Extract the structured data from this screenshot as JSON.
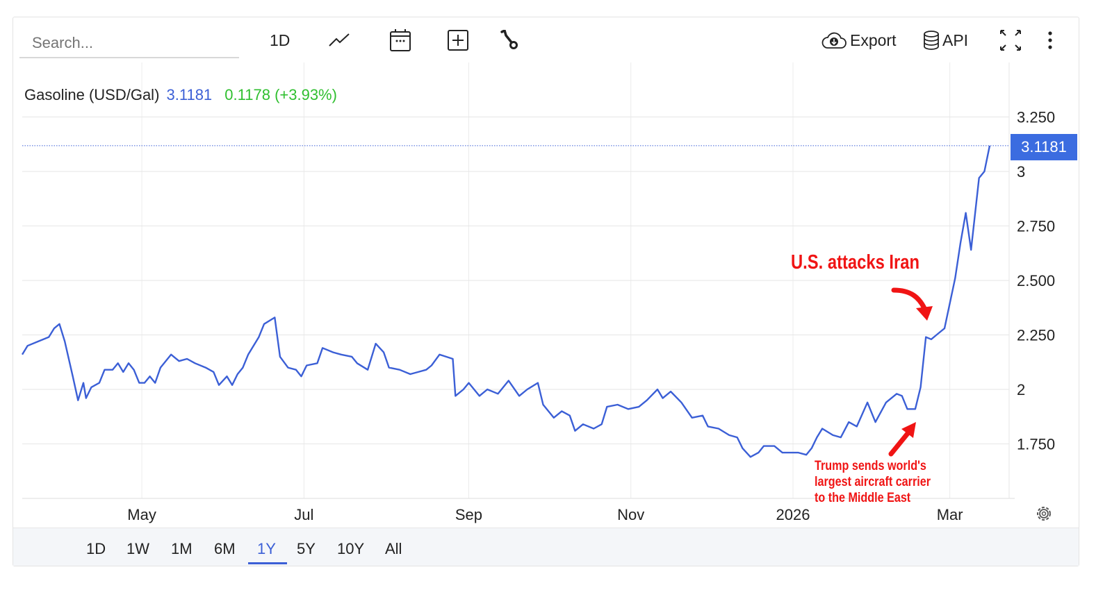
{
  "toolbar": {
    "search_placeholder": "Search...",
    "interval": "1D",
    "export_label": "Export",
    "api_label": "API",
    "icons": [
      "line-chart-icon",
      "calendar-icon",
      "add-box-icon",
      "wrench-icon",
      "cloud-download-icon",
      "database-icon",
      "fullscreen-icon",
      "more-vert-icon"
    ]
  },
  "legend": {
    "name": "Gasoline (USD/Gal)",
    "last": "3.1181",
    "change": "0.1178 (+3.93%)"
  },
  "price_tag": "3.1181",
  "annotations": {
    "top": "U.S. attacks Iran",
    "bottom_lines": [
      "Trump sends world's",
      "largest aircraft carrier",
      "to the Middle East"
    ]
  },
  "ranges": [
    "1D",
    "1W",
    "1M",
    "6M",
    "1Y",
    "5Y",
    "10Y",
    "All"
  ],
  "active_range": "1Y",
  "colors": {
    "line": "#3b5fd6",
    "positive": "#2fbf2f",
    "annotation": "#f01414",
    "price_tag": "#3b6ce0"
  },
  "chart_data": {
    "type": "line",
    "title": "",
    "xlabel": "",
    "ylabel": "",
    "ylim": [
      1.5,
      3.5
    ],
    "xlim": [
      "2025-03-17",
      "2026-03-16"
    ],
    "y_axis_position": "right",
    "grid": true,
    "x_ticks": [
      {
        "date": "2025-05-01",
        "label": "May"
      },
      {
        "date": "2025-07-01",
        "label": "Jul"
      },
      {
        "date": "2025-09-01",
        "label": "Sep"
      },
      {
        "date": "2025-11-01",
        "label": "Nov"
      },
      {
        "date": "2026-01-01",
        "label": "2026"
      },
      {
        "date": "2026-03-01",
        "label": "Mar"
      }
    ],
    "y_ticks": [
      {
        "value": 3.25,
        "label": "3.250"
      },
      {
        "value": 3.0,
        "label": "3"
      },
      {
        "value": 2.75,
        "label": "2.750"
      },
      {
        "value": 2.5,
        "label": "2.500"
      },
      {
        "value": 2.25,
        "label": "2.250"
      },
      {
        "value": 2.0,
        "label": "2"
      },
      {
        "value": 1.75,
        "label": "1.750"
      }
    ],
    "last_value": 3.1181,
    "series": [
      {
        "x": [
          "2025-03-17",
          "2025-03-19",
          "2025-03-23",
          "2025-03-27",
          "2025-03-29",
          "2025-03-31",
          "2025-04-02",
          "2025-04-05",
          "2025-04-07",
          "2025-04-09",
          "2025-04-10",
          "2025-04-12",
          "2025-04-15",
          "2025-04-17",
          "2025-04-20",
          "2025-04-22",
          "2025-04-24",
          "2025-04-26",
          "2025-04-28",
          "2025-04-30",
          "2025-05-02",
          "2025-05-04",
          "2025-05-06",
          "2025-05-08",
          "2025-05-12",
          "2025-05-15",
          "2025-05-18",
          "2025-05-21",
          "2025-05-25",
          "2025-05-28",
          "2025-05-30",
          "2025-06-02",
          "2025-06-04",
          "2025-06-06",
          "2025-06-08",
          "2025-06-10",
          "2025-06-14",
          "2025-06-16",
          "2025-06-20",
          "2025-06-22",
          "2025-06-25",
          "2025-06-28",
          "2025-06-30",
          "2025-07-02",
          "2025-07-06",
          "2025-07-08",
          "2025-07-12",
          "2025-07-15",
          "2025-07-19",
          "2025-07-21",
          "2025-07-25",
          "2025-07-28",
          "2025-07-31",
          "2025-08-02",
          "2025-08-06",
          "2025-08-10",
          "2025-08-13",
          "2025-08-16",
          "2025-08-18",
          "2025-08-21",
          "2025-08-26",
          "2025-08-27",
          "2025-08-30",
          "2025-09-01",
          "2025-09-05",
          "2025-09-08",
          "2025-09-12",
          "2025-09-16",
          "2025-09-20",
          "2025-09-23",
          "2025-09-27",
          "2025-09-29",
          "2025-10-03",
          "2025-10-06",
          "2025-10-09",
          "2025-10-11",
          "2025-10-14",
          "2025-10-18",
          "2025-10-21",
          "2025-10-23",
          "2025-10-27",
          "2025-10-31",
          "2025-11-04",
          "2025-11-07",
          "2025-11-11",
          "2025-11-13",
          "2025-11-16",
          "2025-11-20",
          "2025-11-24",
          "2025-11-28",
          "2025-11-30",
          "2025-12-04",
          "2025-12-08",
          "2025-12-11",
          "2025-12-13",
          "2025-12-16",
          "2025-12-19",
          "2025-12-21",
          "2025-12-25",
          "2025-12-28",
          "2025-12-30",
          "2026-01-03",
          "2026-01-06",
          "2026-01-08",
          "2026-01-10",
          "2026-01-12",
          "2026-01-16",
          "2026-01-19",
          "2026-01-22",
          "2026-01-25",
          "2026-01-29",
          "2026-02-01",
          "2026-02-05",
          "2026-02-09",
          "2026-02-11",
          "2026-02-13",
          "2026-02-16",
          "2026-02-18",
          "2026-02-20",
          "2026-02-22",
          "2026-02-24",
          "2026-02-27",
          "2026-03-03",
          "2026-03-05",
          "2026-03-07",
          "2026-03-09",
          "2026-03-12",
          "2026-03-14",
          "2026-03-16"
        ],
        "y": [
          2.16,
          2.2,
          2.22,
          2.24,
          2.28,
          2.3,
          2.22,
          2.06,
          1.95,
          2.03,
          1.96,
          2.01,
          2.03,
          2.09,
          2.09,
          2.12,
          2.08,
          2.12,
          2.09,
          2.03,
          2.03,
          2.06,
          2.03,
          2.1,
          2.16,
          2.13,
          2.14,
          2.12,
          2.1,
          2.08,
          2.02,
          2.06,
          2.02,
          2.07,
          2.1,
          2.16,
          2.24,
          2.3,
          2.33,
          2.15,
          2.1,
          2.09,
          2.06,
          2.11,
          2.12,
          2.19,
          2.17,
          2.16,
          2.15,
          2.12,
          2.09,
          2.21,
          2.17,
          2.1,
          2.09,
          2.07,
          2.08,
          2.09,
          2.11,
          2.16,
          2.14,
          1.97,
          2.0,
          2.03,
          1.97,
          2.0,
          1.98,
          2.04,
          1.97,
          2.0,
          2.03,
          1.93,
          1.87,
          1.9,
          1.88,
          1.81,
          1.84,
          1.82,
          1.84,
          1.92,
          1.93,
          1.91,
          1.92,
          1.95,
          2.0,
          1.96,
          1.99,
          1.94,
          1.87,
          1.88,
          1.83,
          1.82,
          1.79,
          1.78,
          1.73,
          1.69,
          1.71,
          1.74,
          1.74,
          1.71,
          1.71,
          1.71,
          1.7,
          1.73,
          1.78,
          1.82,
          1.79,
          1.78,
          1.85,
          1.83,
          1.94,
          1.85,
          1.94,
          1.98,
          1.97,
          1.91,
          1.91,
          2.01,
          2.24,
          2.23,
          2.25,
          2.28,
          2.51,
          2.67,
          2.81,
          2.64,
          2.97,
          3.0,
          3.1181
        ]
      }
    ]
  }
}
